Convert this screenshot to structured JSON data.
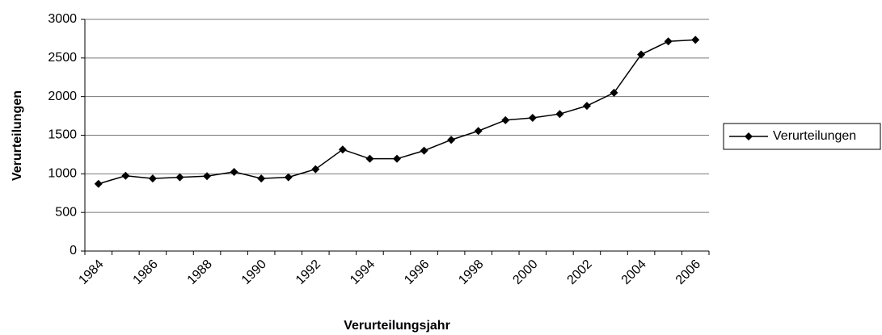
{
  "chart_data": {
    "type": "line",
    "x_label": "Verurteilungsjahr",
    "y_label": "Verurteilungen",
    "categories": [
      "1984",
      null,
      "1986",
      null,
      "1988",
      null,
      "1990",
      null,
      "1992",
      null,
      "1994",
      null,
      "1996",
      null,
      "1998",
      null,
      "2000",
      null,
      "2002",
      null,
      "2004",
      null,
      "2006"
    ],
    "series": [
      {
        "name": "Verurteilungen",
        "color": "#000000",
        "values": [
          870,
          975,
          940,
          955,
          970,
          1025,
          940,
          955,
          1060,
          1315,
          1195,
          1195,
          1300,
          1440,
          1555,
          1695,
          1725,
          1775,
          1880,
          2050,
          2545,
          2715,
          2735
        ]
      }
    ],
    "ylim": [
      0,
      3000
    ],
    "yticks": [
      0,
      500,
      1000,
      1500,
      2000,
      2500,
      3000
    ],
    "grid": true,
    "legend": "right"
  }
}
